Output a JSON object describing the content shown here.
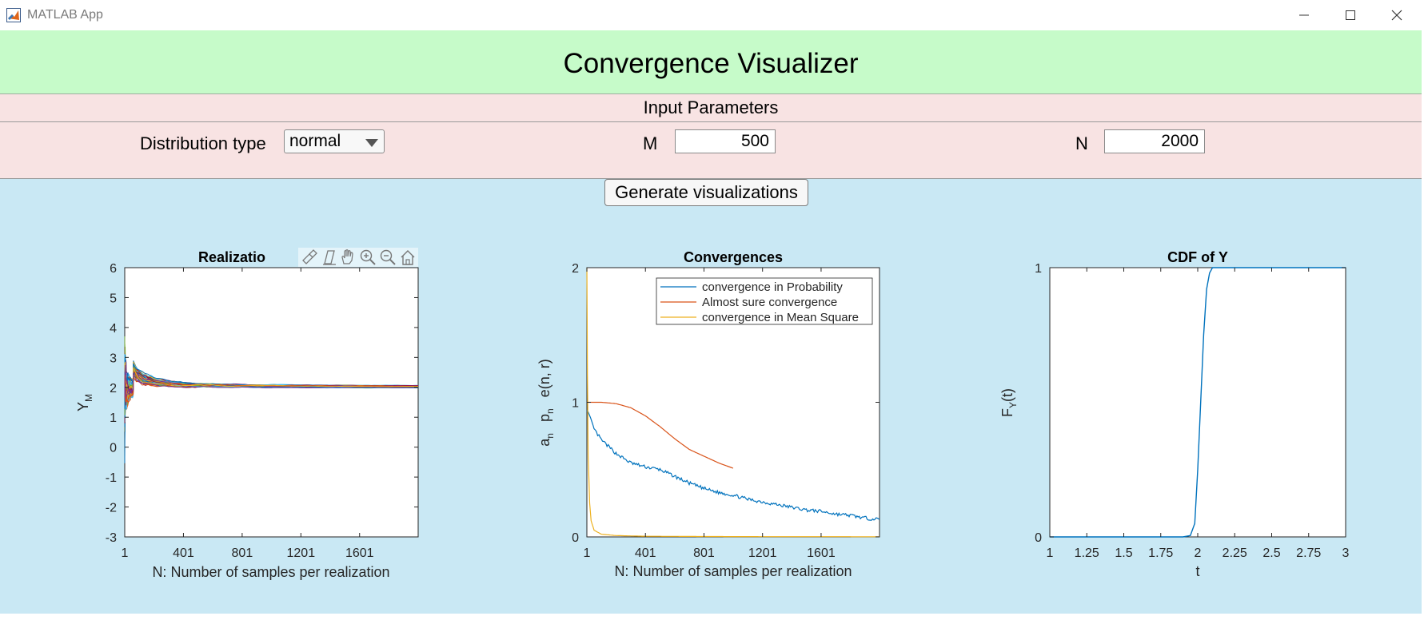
{
  "window": {
    "title": "MATLAB App",
    "minimize_icon": "minimize-icon",
    "maximize_icon": "maximize-icon",
    "close_icon": "close-icon"
  },
  "header": {
    "title": "Convergence Visualizer"
  },
  "params": {
    "section_title": "Input Parameters",
    "distribution_label": "Distribution type",
    "distribution_value": "normal",
    "m_label": "M",
    "m_value": "500",
    "n_label": "N",
    "n_value": "2000"
  },
  "actions": {
    "generate_label": "Generate visualizations"
  },
  "colors": {
    "header_bg": "#c6fbc9",
    "params_bg": "#f8e3e3",
    "main_bg": "#c9e8f4",
    "series_blue": "#0072BD",
    "series_orange": "#D95319",
    "series_yellow": "#EDB120"
  },
  "chart_data": [
    {
      "type": "line",
      "title": "Realizatio",
      "xlabel": "N: Number of samples per realization",
      "ylabel": "Y",
      "ylabel_sub": "M",
      "xlim": [
        1,
        2000
      ],
      "ylim": [
        -3,
        6
      ],
      "xticks": [
        1,
        401,
        801,
        1201,
        1601
      ],
      "xtick_labels": [
        "1",
        "401",
        "801",
        "1201",
        "1601"
      ],
      "yticks": [
        -3,
        -2,
        -1,
        0,
        1,
        2,
        3,
        4,
        5,
        6
      ],
      "ytick_labels": [
        "-3",
        "-2",
        "-1",
        "0",
        "1",
        "2",
        "3",
        "4",
        "5",
        "6"
      ],
      "converges_to": 2,
      "toolbar_icons": [
        "brush-icon",
        "data-tips-icon",
        "pan-icon",
        "zoom-in-icon",
        "zoom-out-icon",
        "home-icon"
      ]
    },
    {
      "type": "line",
      "title": "Convergences",
      "xlabel": "N: Number of samples per realization",
      "ylabel_parts": [
        "a",
        "n",
        "p",
        "n",
        "e(n, r)"
      ],
      "xlim": [
        1,
        2000
      ],
      "ylim": [
        0,
        2
      ],
      "xticks": [
        1,
        401,
        801,
        1201,
        1601
      ],
      "xtick_labels": [
        "1",
        "401",
        "801",
        "1201",
        "1601"
      ],
      "yticks": [
        0,
        1,
        2
      ],
      "ytick_labels": [
        "0",
        "1",
        "2"
      ],
      "legend_position": "top-right",
      "series": [
        {
          "name": "convergence in Probability",
          "color": "#0072BD",
          "x": [
            1,
            50,
            100,
            200,
            300,
            400,
            500,
            600,
            700,
            800,
            900,
            1000,
            1100,
            1200,
            1300,
            1400,
            1500,
            1600,
            1700,
            1800,
            1900,
            2000
          ],
          "y": [
            0.95,
            0.8,
            0.72,
            0.62,
            0.55,
            0.52,
            0.5,
            0.45,
            0.4,
            0.36,
            0.33,
            0.31,
            0.28,
            0.26,
            0.24,
            0.22,
            0.2,
            0.19,
            0.17,
            0.16,
            0.14,
            0.13
          ]
        },
        {
          "name": "Almost sure convergence",
          "color": "#D95319",
          "x": [
            1,
            100,
            200,
            300,
            400,
            500,
            600,
            700,
            800,
            900,
            1000
          ],
          "y": [
            1.0,
            1.0,
            0.99,
            0.96,
            0.9,
            0.82,
            0.73,
            0.65,
            0.6,
            0.55,
            0.51
          ]
        },
        {
          "name": "convergence in Mean Square",
          "color": "#EDB120",
          "x": [
            1,
            5,
            10,
            20,
            30,
            50,
            100,
            200,
            400,
            800,
            1200,
            1600,
            2000
          ],
          "y": [
            2.0,
            1.2,
            0.6,
            0.25,
            0.12,
            0.05,
            0.02,
            0.01,
            0.005,
            0.003,
            0.002,
            0.002,
            0.001
          ]
        }
      ]
    },
    {
      "type": "line",
      "title": "CDF of Y",
      "xlabel": "t",
      "ylabel": "F",
      "ylabel_sub": "Y",
      "ylabel_tail": "(t)",
      "xlim": [
        1,
        3
      ],
      "ylim": [
        0,
        1
      ],
      "xticks": [
        1,
        1.25,
        1.5,
        1.75,
        2,
        2.25,
        2.5,
        2.75,
        3
      ],
      "xtick_labels": [
        "1",
        "1.25",
        "1.5",
        "1.75",
        "2",
        "2.25",
        "2.5",
        "2.75",
        "3"
      ],
      "yticks": [
        0,
        1
      ],
      "ytick_labels": [
        "0",
        "1"
      ],
      "series": [
        {
          "name": "CDF",
          "color": "#0072BD",
          "x": [
            1,
            1.9,
            1.95,
            1.98,
            2.0,
            2.02,
            2.04,
            2.06,
            2.08,
            2.1,
            3
          ],
          "y": [
            0,
            0,
            0.005,
            0.05,
            0.25,
            0.5,
            0.75,
            0.92,
            0.98,
            1.0,
            1.0
          ]
        }
      ]
    }
  ]
}
